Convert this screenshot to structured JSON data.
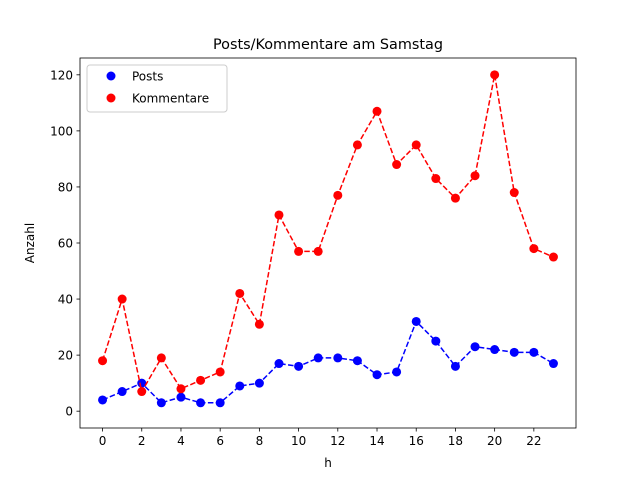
{
  "chart_data": {
    "type": "line",
    "title": "Posts/Kommentare am Samstag",
    "xlabel": "h",
    "ylabel": "Anzahl",
    "x": [
      0,
      1,
      2,
      3,
      4,
      5,
      6,
      7,
      8,
      9,
      10,
      11,
      12,
      13,
      14,
      15,
      16,
      17,
      18,
      19,
      20,
      21,
      22,
      23
    ],
    "xlim": [
      -1.15,
      24.15
    ],
    "ylim": [
      -6,
      126
    ],
    "xticks": [
      0,
      2,
      4,
      6,
      8,
      10,
      12,
      14,
      16,
      18,
      20,
      22
    ],
    "yticks": [
      0,
      20,
      40,
      60,
      80,
      100,
      120
    ],
    "grid": false,
    "legend_position": "top-left",
    "series": [
      {
        "name": "Posts",
        "color": "#0000ff",
        "line_style": "dashed",
        "marker": "circle",
        "values": [
          4,
          7,
          10,
          3,
          5,
          3,
          3,
          9,
          10,
          17,
          16,
          19,
          19,
          18,
          13,
          14,
          32,
          25,
          16,
          23,
          22,
          21,
          21,
          17
        ]
      },
      {
        "name": "Kommentare",
        "color": "#ff0000",
        "line_style": "dashed",
        "marker": "circle",
        "values": [
          18,
          40,
          7,
          19,
          8,
          11,
          14,
          42,
          31,
          70,
          57,
          57,
          77,
          95,
          107,
          88,
          95,
          83,
          76,
          84,
          120,
          78,
          58,
          55
        ]
      }
    ]
  }
}
